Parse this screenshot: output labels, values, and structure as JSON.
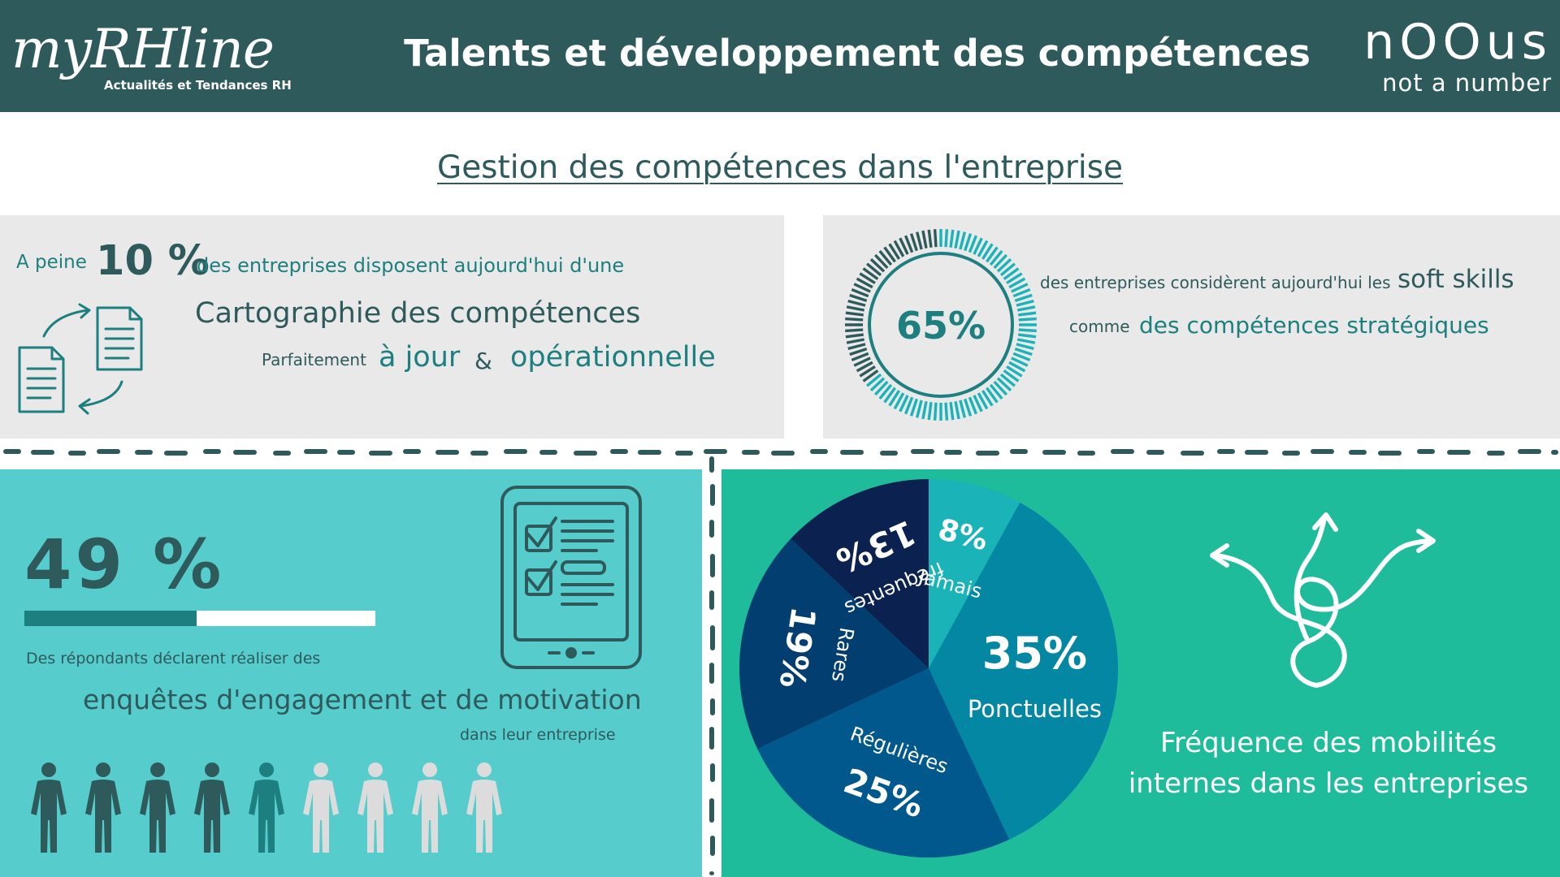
{
  "header": {
    "logo_left": "myRHline",
    "logo_left_tagline": "Actualités et Tendances RH",
    "title": "Talents et développement des compétences",
    "logo_right": "nOOus",
    "logo_right_tagline": "not a number"
  },
  "section_title": "Gestion des compétences dans l'entreprise",
  "cartography": {
    "prefix": "A peine",
    "percent": "10 %",
    "suffix": "des entreprises disposent aujourd'hui d'une",
    "title": "Cartographie des compétences",
    "qualifier": "Parfaitement",
    "word1": "à jour",
    "ampersand": "&",
    "word2": "opérationnelle",
    "icon": "documents-exchange-icon"
  },
  "soft_skills": {
    "percent_label": "65%",
    "percent_value": 65,
    "line1": "des entreprises considèrent aujourd'hui les",
    "highlight1": "soft skills",
    "line2_prefix": "comme",
    "highlight2": "des compétences stratégiques",
    "colors": {
      "filled": "#19b3b8",
      "empty": "#2e5a5c"
    }
  },
  "engagement": {
    "percent_label": "49 %",
    "progress": 0.49,
    "line1": "Des répondants déclarent réaliser des",
    "line2": "enquêtes d'engagement et de motivation",
    "line3": "dans leur entreprise",
    "icon": "survey-tablet-icon",
    "people_total": 9,
    "people_highlighted": 5
  },
  "mobility": {
    "title_line1": "Fréquence des mobilités",
    "title_line2": "internes dans les entreprises",
    "icon": "diverging-arrows-icon"
  },
  "chart_data": {
    "type": "pie",
    "title": "",
    "slices": [
      {
        "label": "Jamais",
        "percent_label": "8%",
        "value": 8,
        "color": "#19b3b8"
      },
      {
        "label": "Ponctuelles",
        "percent_label": "35%",
        "value": 35,
        "color": "#0387a2"
      },
      {
        "label": "Régulières",
        "percent_label": "25%",
        "value": 25,
        "color": "#01588c"
      },
      {
        "label": "Rares",
        "percent_label": "19%",
        "value": 19,
        "color": "#033e70"
      },
      {
        "label": "fréquentes",
        "percent_label": "13%",
        "value": 13,
        "color": "#0b214f"
      }
    ]
  },
  "colors": {
    "header_bg": "#2e5a5c",
    "teal_text": "#1d7f7f",
    "panel_grey": "#e9e9e9",
    "panel_cyan": "#56cccd",
    "panel_green": "#1ebc9b"
  }
}
